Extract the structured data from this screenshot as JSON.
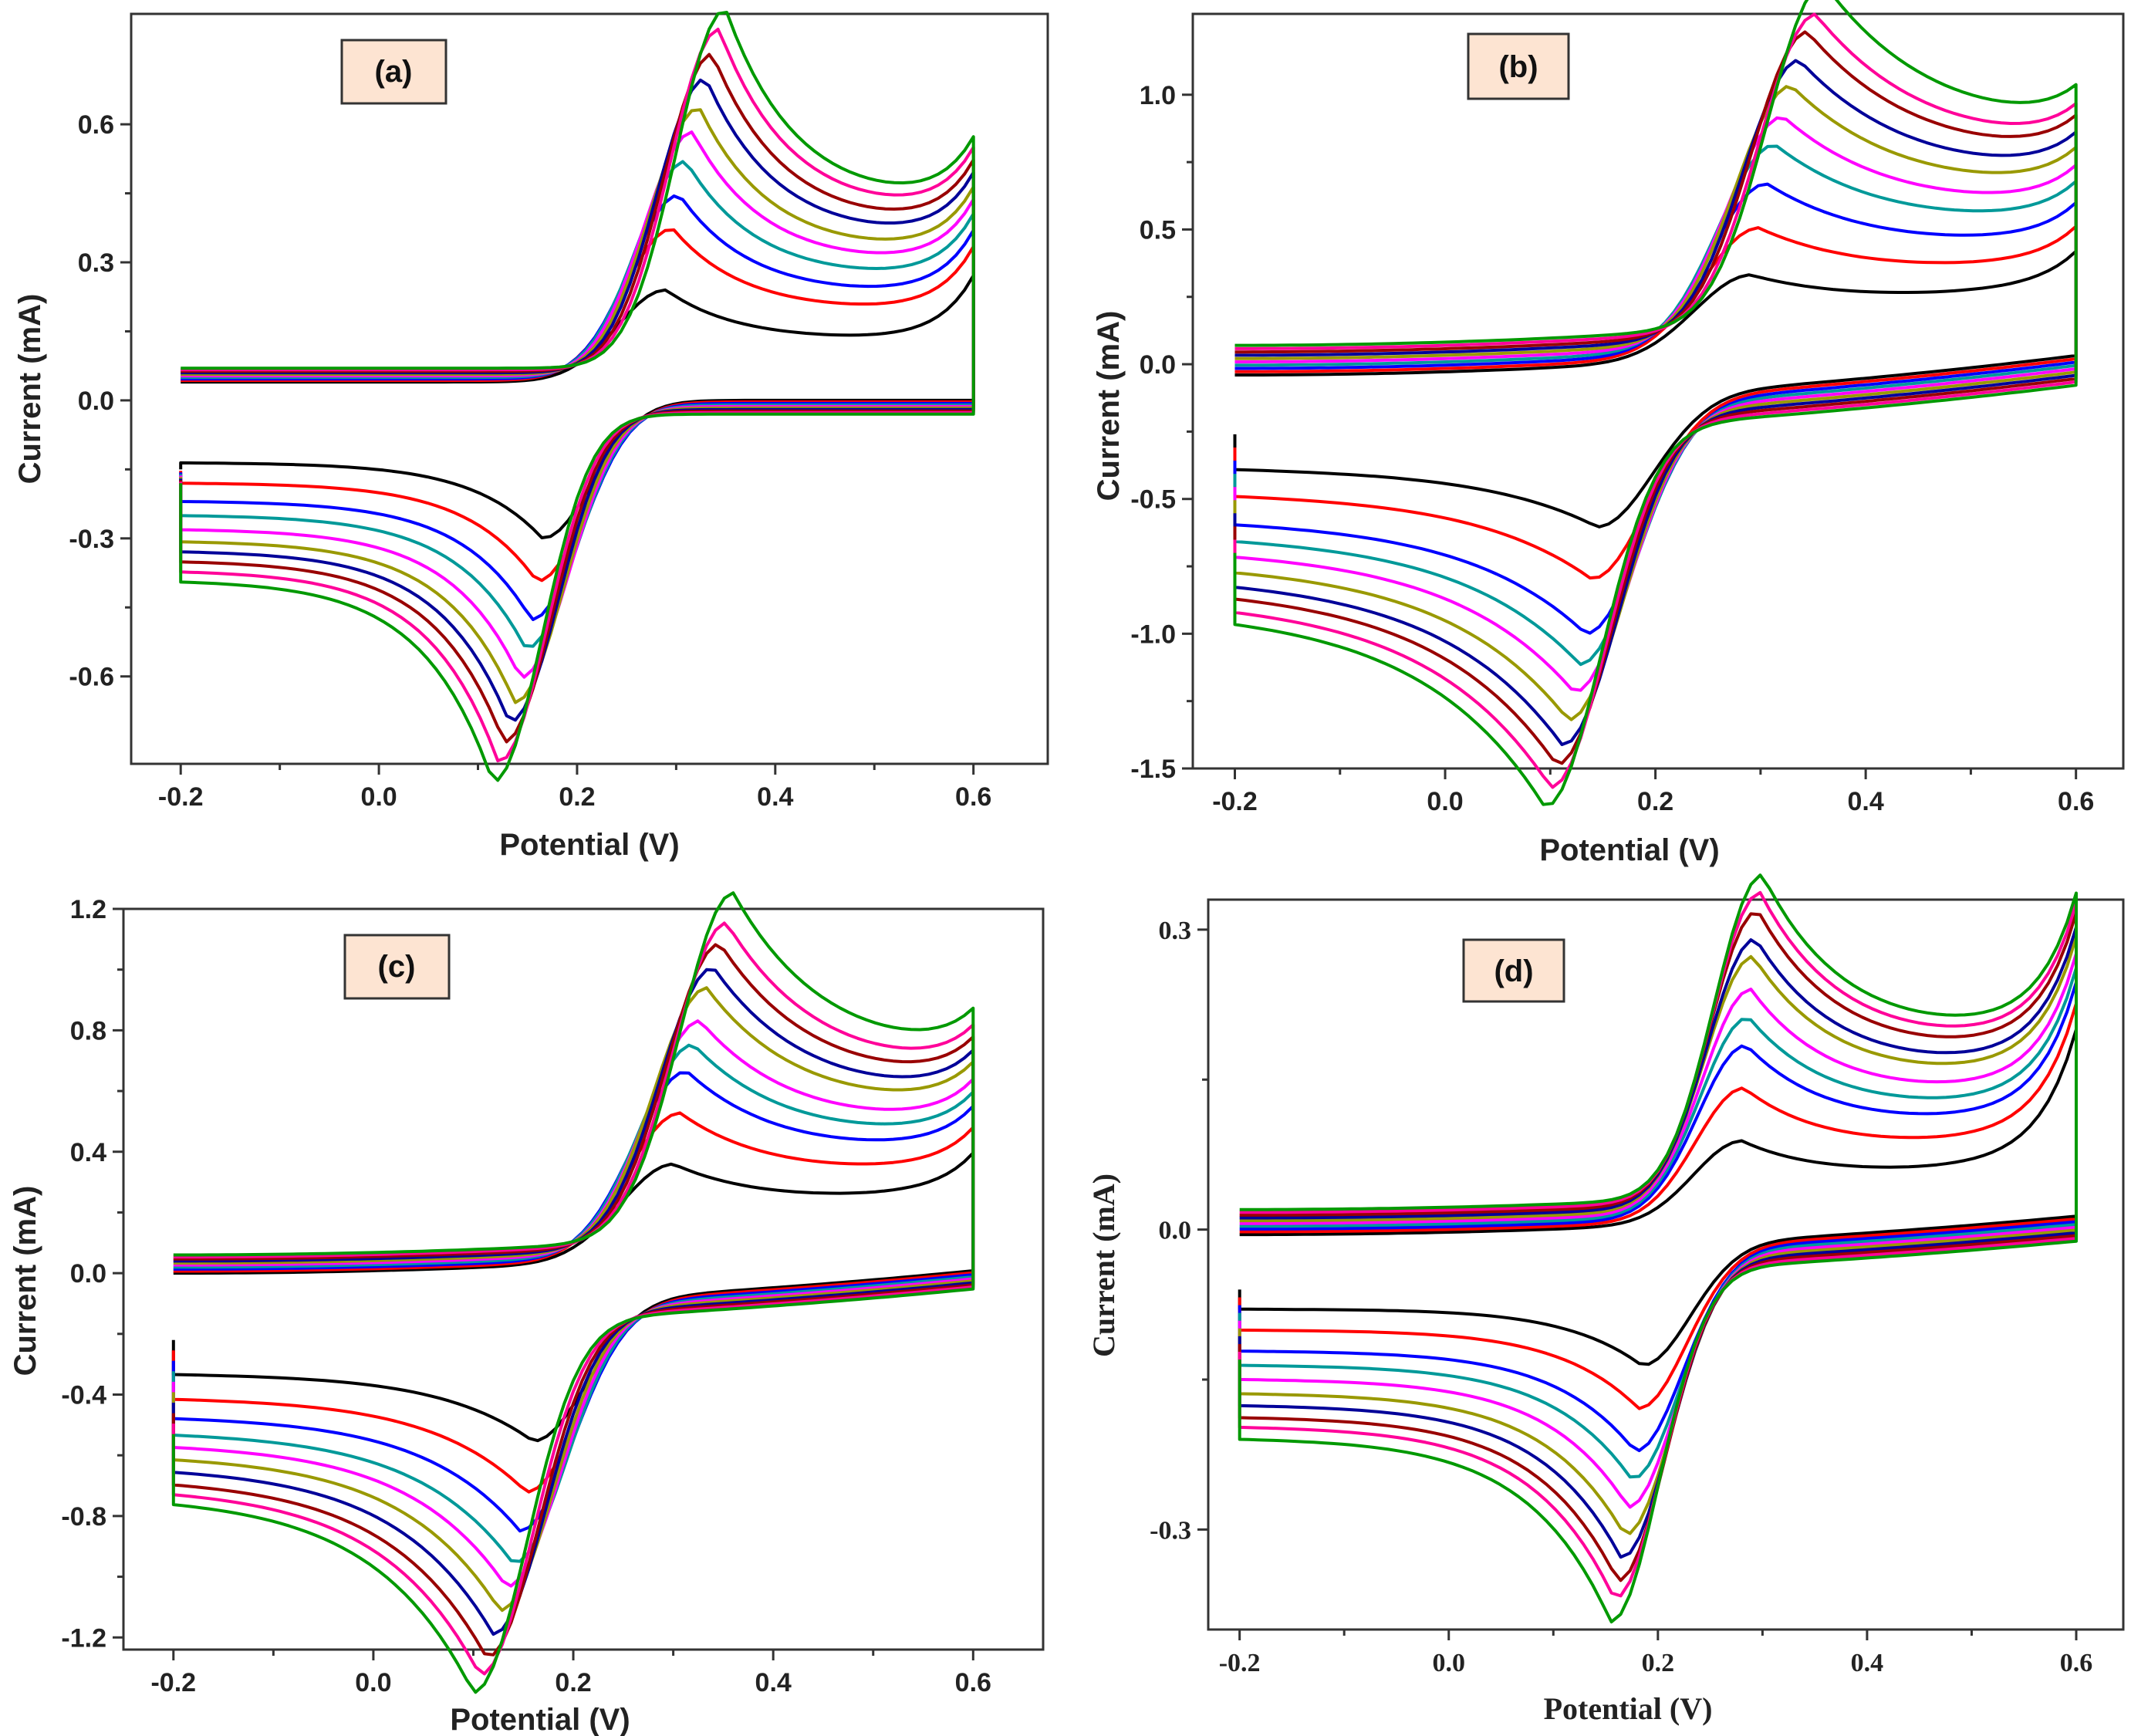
{
  "chart_data": [
    {
      "type": "line",
      "panel_label": "(a)",
      "xlabel": "Potential (V)",
      "ylabel": "Current (mA)",
      "xlim": [
        -0.25,
        0.675
      ],
      "ylim": [
        -0.79,
        0.84
      ],
      "xticks": [
        "-0.2",
        "0.0",
        "0.2",
        "0.4",
        "0.6"
      ],
      "xtick_values": [
        -0.2,
        0.0,
        0.2,
        0.4,
        0.6
      ],
      "yticks": [
        "-0.6",
        "-0.3",
        "0.0",
        "0.3",
        "0.6"
      ],
      "ytick_values": [
        -0.6,
        -0.3,
        0.0,
        0.3,
        0.6
      ],
      "grid": false,
      "params": {
        "a0": 0.02,
        "a1": 0.0,
        "g": 0.14,
        "ox_peak": [
          0.2,
          0.78
        ],
        "red_peak": [
          -0.3,
          -0.8
        ],
        "epa": [
          0.29,
          0.35
        ],
        "epc": [
          0.165,
          0.115
        ],
        "w": 0.07,
        "dec": 0.07,
        "cap": [
          0.02,
          0.05
        ],
        "end_up": [
          0.04,
          0.2
        ],
        "end_dn": [
          -0.15,
          -0.18
        ]
      },
      "series": [
        {
          "color": "#000000",
          "peak_oxidation": 0.2,
          "peak_reduction": -0.3
        },
        {
          "color": "#ff0000",
          "peak_oxidation": 0.33,
          "peak_reduction": -0.39
        },
        {
          "color": "#0000ff",
          "peak_oxidation": 0.4,
          "peak_reduction": -0.47
        },
        {
          "color": "#009999",
          "peak_oxidation": 0.47,
          "peak_reduction": -0.53
        },
        {
          "color": "#ff00ff",
          "peak_oxidation": 0.53,
          "peak_reduction": -0.59
        },
        {
          "color": "#999900",
          "peak_oxidation": 0.58,
          "peak_reduction": -0.64
        },
        {
          "color": "#000099",
          "peak_oxidation": 0.64,
          "peak_reduction": -0.68
        },
        {
          "color": "#990000",
          "peak_oxidation": 0.69,
          "peak_reduction": -0.72
        },
        {
          "color": "#ff0099",
          "peak_oxidation": 0.74,
          "peak_reduction": -0.76
        },
        {
          "color": "#009900",
          "peak_oxidation": 0.78,
          "peak_reduction": -0.8
        }
      ]
    },
    {
      "type": "line",
      "panel_label": "(b)",
      "xlabel": "Potential (V)",
      "ylabel": "Current (mA)",
      "xlim": [
        -0.24,
        0.645
      ],
      "ylim": [
        -1.5,
        1.3
      ],
      "xticks": [
        "-0.2",
        "0.0",
        "0.2",
        "0.4",
        "0.6"
      ],
      "xtick_values": [
        -0.2,
        0.0,
        0.2,
        0.4,
        0.6
      ],
      "yticks": [
        "-1.5",
        "-1.0",
        "-0.5",
        "0.0",
        "0.5",
        "1.0"
      ],
      "ytick_values": [
        -1.5,
        -1.0,
        -0.5,
        0.0,
        0.5,
        1.0
      ],
      "grid": false,
      "params": {
        "a0": -0.1,
        "a1": 0.3,
        "g": 0.12,
        "ox_peak": [
          0.3,
          1.25
        ],
        "red_peak": [
          -0.48,
          -1.4
        ],
        "epa": [
          0.29,
          0.36
        ],
        "epc": [
          0.145,
          0.095
        ],
        "w": 0.075,
        "dec": 0.12,
        "cap": [
          0.06,
          0.17
        ],
        "end_up": [
          0.07,
          0.88
        ],
        "end_dn": [
          -0.26,
          -0.7
        ]
      },
      "series": [
        {
          "color": "#000000",
          "peak_oxidation": 0.3,
          "peak_reduction": -0.48
        },
        {
          "color": "#ff0000",
          "peak_oxidation": 0.46,
          "peak_reduction": -0.66
        },
        {
          "color": "#0000ff",
          "peak_oxidation": 0.61,
          "peak_reduction": -0.85
        },
        {
          "color": "#009999",
          "peak_oxidation": 0.74,
          "peak_reduction": -0.95
        },
        {
          "color": "#ff00ff",
          "peak_oxidation": 0.83,
          "peak_reduction": -1.04
        },
        {
          "color": "#999900",
          "peak_oxidation": 0.93,
          "peak_reduction": -1.13
        },
        {
          "color": "#000099",
          "peak_oxidation": 1.01,
          "peak_reduction": -1.21
        },
        {
          "color": "#990000",
          "peak_oxidation": 1.1,
          "peak_reduction": -1.27
        },
        {
          "color": "#ff0099",
          "peak_oxidation": 1.15,
          "peak_reduction": -1.34
        },
        {
          "color": "#009900",
          "peak_oxidation": 1.25,
          "peak_reduction": -1.4
        }
      ]
    },
    {
      "type": "line",
      "panel_label": "(c)",
      "xlabel": "Potential (V)",
      "ylabel": "Current (mA)",
      "xlim": [
        -0.25,
        0.67
      ],
      "ylim": [
        -1.24,
        1.2
      ],
      "xticks": [
        "-0.2",
        "0.0",
        "0.2",
        "0.4",
        "0.6"
      ],
      "xtick_values": [
        -0.2,
        0.0,
        0.2,
        0.4,
        0.6
      ],
      "yticks": [
        "-1.2",
        "-0.8",
        "-0.4",
        "0.0",
        "0.4",
        "0.8",
        "1.2"
      ],
      "ytick_values": [
        -1.2,
        -0.8,
        -0.4,
        0.0,
        0.4,
        0.8,
        1.2
      ],
      "grid": false,
      "params": {
        "a0": -0.06,
        "a1": 0.2,
        "g": 0.12,
        "ox_peak": [
          0.31,
          1.13
        ],
        "red_peak": [
          -0.46,
          -1.22
        ],
        "epa": [
          0.3,
          0.36
        ],
        "epc": [
          0.16,
          0.1
        ],
        "w": 0.075,
        "dec": 0.1,
        "cap": [
          0.06,
          0.12
        ],
        "end_up": [
          0.1,
          0.77
        ],
        "end_dn": [
          -0.22,
          -0.53
        ]
      },
      "series": [
        {
          "color": "#000000",
          "peak_oxidation": 0.31,
          "peak_reduction": -0.46
        },
        {
          "color": "#ff0000",
          "peak_oxidation": 0.47,
          "peak_reduction": -0.62
        },
        {
          "color": "#0000ff",
          "peak_oxidation": 0.6,
          "peak_reduction": -0.74
        },
        {
          "color": "#009999",
          "peak_oxidation": 0.68,
          "peak_reduction": -0.84
        },
        {
          "color": "#ff00ff",
          "peak_oxidation": 0.75,
          "peak_reduction": -0.91
        },
        {
          "color": "#999900",
          "peak_oxidation": 0.85,
          "peak_reduction": -0.98
        },
        {
          "color": "#000099",
          "peak_oxidation": 0.91,
          "peak_reduction": -1.05
        },
        {
          "color": "#990000",
          "peak_oxidation": 0.98,
          "peak_reduction": -1.12
        },
        {
          "color": "#ff0099",
          "peak_oxidation": 1.04,
          "peak_reduction": -1.17
        },
        {
          "color": "#009900",
          "peak_oxidation": 1.13,
          "peak_reduction": -1.22
        }
      ]
    },
    {
      "type": "line",
      "panel_label": "(d)",
      "xlabel": "Potential (V)",
      "ylabel": "Current (mA)",
      "xlim": [
        -0.23,
        0.645
      ],
      "ylim": [
        -0.4,
        0.33
      ],
      "xticks": [
        "-0.2",
        "0.0",
        "0.2",
        "0.4",
        "0.6"
      ],
      "xtick_values": [
        -0.2,
        0.0,
        0.2,
        0.4,
        0.6
      ],
      "yticks": [
        "-0.3",
        "0.0",
        "0.3"
      ],
      "ytick_values": [
        -0.3,
        0.0,
        0.3
      ],
      "grid": false,
      "params": {
        "a0": -0.015,
        "a1": 0.06,
        "g": 0.13,
        "ox_peak": [
          0.08,
          0.32
        ],
        "red_peak": [
          -0.12,
          -0.35
        ],
        "epa": [
          0.28,
          0.3
        ],
        "epc": [
          0.185,
          0.155
        ],
        "w": 0.065,
        "dec": 0.08,
        "cap": [
          0.01,
          0.035
        ],
        "end_up": [
          0.02,
          0.13
        ],
        "end_dn": [
          -0.06,
          -0.13
        ]
      },
      "series": [
        {
          "color": "#000000",
          "peak_oxidation": 0.08,
          "peak_reduction": -0.12
        },
        {
          "color": "#ff0000",
          "peak_oxidation": 0.13,
          "peak_reduction": -0.16
        },
        {
          "color": "#0000ff",
          "peak_oxidation": 0.17,
          "peak_reduction": -0.2
        },
        {
          "color": "#009999",
          "peak_oxidation": 0.195,
          "peak_reduction": -0.225
        },
        {
          "color": "#ff00ff",
          "peak_oxidation": 0.22,
          "peak_reduction": -0.25
        },
        {
          "color": "#999900",
          "peak_oxidation": 0.25,
          "peak_reduction": -0.275
        },
        {
          "color": "#000099",
          "peak_oxidation": 0.265,
          "peak_reduction": -0.295
        },
        {
          "color": "#990000",
          "peak_oxidation": 0.29,
          "peak_reduction": -0.315
        },
        {
          "color": "#ff0099",
          "peak_oxidation": 0.305,
          "peak_reduction": -0.33
        },
        {
          "color": "#009900",
          "peak_oxidation": 0.32,
          "peak_reduction": -0.35
        }
      ]
    }
  ]
}
